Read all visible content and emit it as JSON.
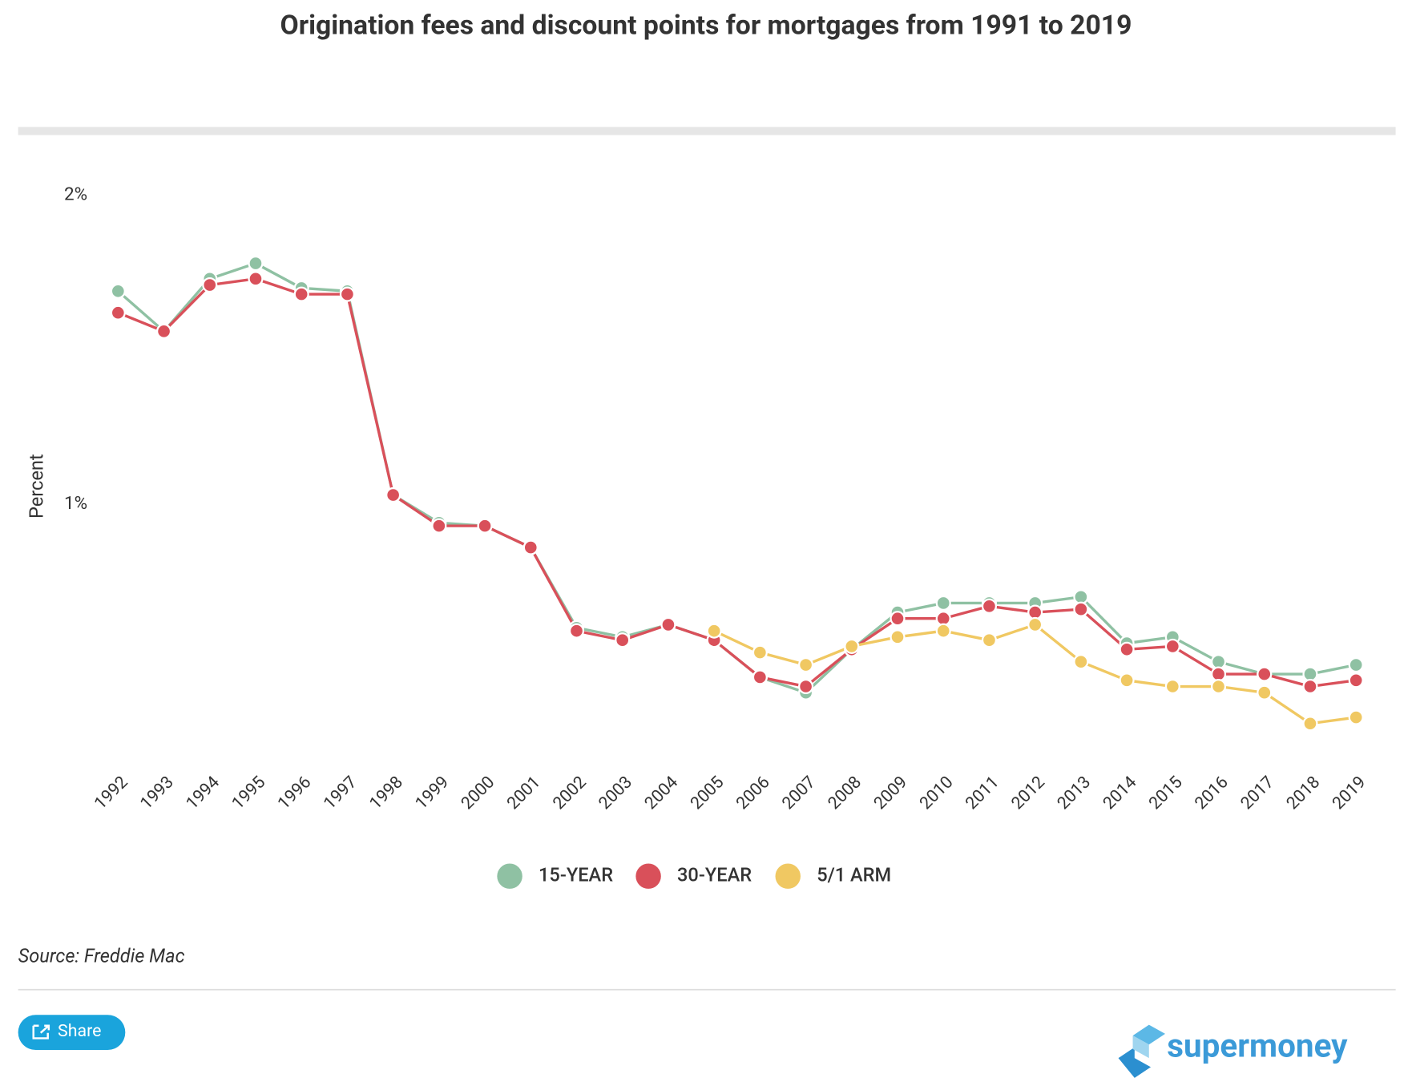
{
  "chart_data": {
    "type": "line",
    "title": "Origination fees and discount points for mortgages from 1991 to 2019",
    "y_label": "Percent",
    "categories": [
      "1992",
      "1993",
      "1994",
      "1995",
      "1996",
      "1997",
      "1998",
      "1999",
      "2000",
      "2001",
      "2002",
      "2003",
      "2004",
      "2005",
      "2006",
      "2007",
      "2008",
      "2009",
      "2010",
      "2011",
      "2012",
      "2013",
      "2014",
      "2015",
      "2016",
      "2017",
      "2018",
      "2019"
    ],
    "series": [
      {
        "name": "15-YEAR",
        "color": "#8fc1a3",
        "values": [
          1.69,
          1.56,
          1.73,
          1.78,
          1.7,
          1.69,
          1.03,
          0.94,
          0.93,
          0.86,
          0.6,
          0.57,
          0.61,
          0.56,
          0.44,
          0.39,
          0.53,
          0.65,
          0.68,
          0.68,
          0.68,
          0.7,
          0.55,
          0.57,
          0.49,
          0.45,
          0.45,
          0.48
        ]
      },
      {
        "name": "30-YEAR",
        "color": "#d9505a",
        "values": [
          1.62,
          1.56,
          1.71,
          1.73,
          1.68,
          1.68,
          1.03,
          0.93,
          0.93,
          0.86,
          0.59,
          0.56,
          0.61,
          0.56,
          0.44,
          0.41,
          0.53,
          0.63,
          0.63,
          0.67,
          0.65,
          0.66,
          0.53,
          0.54,
          0.45,
          0.45,
          0.41,
          0.43
        ]
      },
      {
        "name": "5/1 ARM",
        "color": "#f0c862",
        "values": [
          null,
          null,
          null,
          null,
          null,
          null,
          null,
          null,
          null,
          null,
          null,
          null,
          null,
          0.59,
          0.52,
          0.48,
          0.54,
          0.57,
          0.59,
          0.56,
          0.61,
          0.49,
          0.43,
          0.41,
          0.41,
          0.39,
          0.29,
          0.31
        ]
      }
    ],
    "ylim": [
      0.15,
      2
    ],
    "yticks": [
      {
        "value": 1,
        "label": "1%"
      },
      {
        "value": 2,
        "label": "2%"
      }
    ],
    "grid": false,
    "legend": "bottom"
  },
  "source": "Source: Freddie Mac",
  "share_button": "Share",
  "brand": "supermoney"
}
